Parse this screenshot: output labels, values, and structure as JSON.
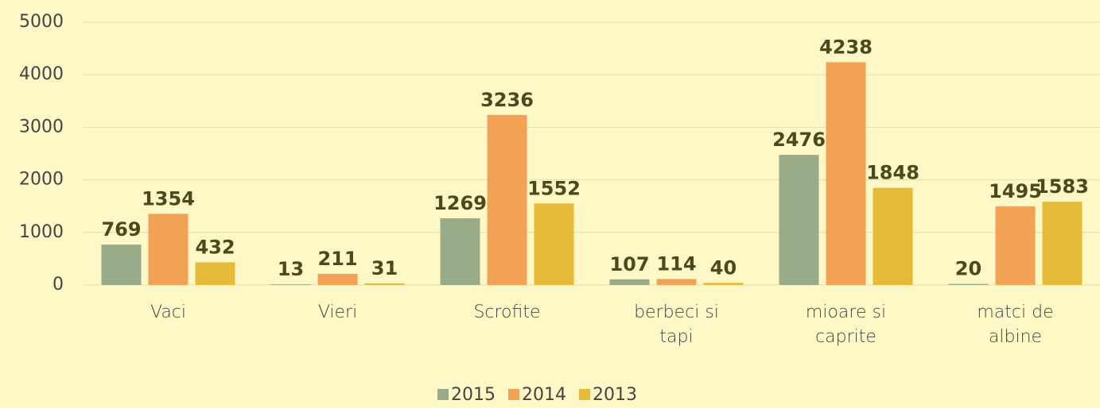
{
  "chart_data": {
    "type": "bar",
    "categories": [
      "Vaci",
      "Vieri",
      "Scrofite",
      "berbeci si tapi",
      "mioare si caprite",
      "matci de albine"
    ],
    "series": [
      {
        "name": "2015",
        "color": "#9aab8a",
        "values": [
          769,
          13,
          1269,
          107,
          2476,
          20
        ]
      },
      {
        "name": "2014",
        "color": "#f2a155",
        "values": [
          1354,
          211,
          3236,
          114,
          4238,
          1495
        ]
      },
      {
        "name": "2013",
        "color": "#e6bb3a",
        "values": [
          432,
          31,
          1552,
          40,
          1848,
          1583
        ]
      }
    ],
    "ylim": [
      0,
      5000
    ],
    "yticks": [
      0,
      1000,
      2000,
      3000,
      4000,
      5000
    ],
    "grid": true,
    "legend": "bottom"
  }
}
